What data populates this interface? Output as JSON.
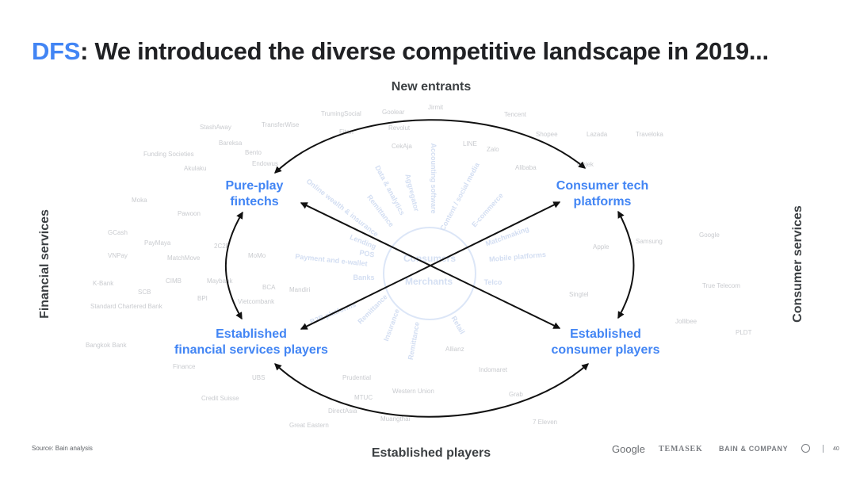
{
  "title": {
    "accent": "DFS",
    "rest": ": We introduced the diverse competitive landscape in 2019..."
  },
  "axes": {
    "top": "New entrants",
    "bottom": "Established players",
    "left": "Financial services",
    "right": "Consumer services"
  },
  "nodes": {
    "pureplay": [
      "Pure-play",
      "fintechs"
    ],
    "consumer_tech": [
      "Consumer tech",
      "platforms"
    ],
    "est_financial": [
      "Established",
      "financial services players"
    ],
    "est_consumer": [
      "Established",
      "consumer players"
    ]
  },
  "hub": [
    "Consumers",
    "Merchants"
  ],
  "spokes": [
    "Online wealth & insurance",
    "Data & analytics",
    "Remittance",
    "Aggregator",
    "Accounting software",
    "Content / social media",
    "E-commerce",
    "Matchmaking",
    "Mobile platforms",
    "Telco",
    "Retail",
    "Remittance",
    "Insurance",
    "Remittance",
    "Banks",
    "Payment and e-wallet",
    "POS",
    "Lending",
    "B2B platforms"
  ],
  "background_logos": [
    "TrumingSocial",
    "Goolear",
    "Jirmit",
    "Tencent",
    "StashAway",
    "TransferWise",
    "Fitan",
    "Revolut",
    "LINE",
    "Shopee",
    "Lazada",
    "Traveloka",
    "Bareksa",
    "Bento",
    "CekAja",
    "Zalo",
    "Funding Societies",
    "Endowus",
    "Akulaku",
    "Alibaba",
    "Gojek",
    "Moka",
    "Pawoon",
    "GCash",
    "PayMaya",
    "2C2P",
    "Apple",
    "Samsung",
    "Google",
    "VNPay",
    "MatchMove",
    "MoMo",
    "K-Bank",
    "SCB",
    "CIMB",
    "Maybank",
    "BCA",
    "Mandiri",
    "True Telecom",
    "Standard Chartered Bank",
    "BPI",
    "Vietcombank",
    "Singtel",
    "Bangkok Bank",
    "Jollibee",
    "PLDT",
    "Finance",
    "Allianz",
    "Indomaret",
    "UBS",
    "Prudential",
    "Western Union",
    "Credit Suisse",
    "MTUC",
    "DirectAsia",
    "Grab",
    "Great Eastern",
    "Muangthai",
    "7 Eleven"
  ],
  "footer": {
    "source": "Source: Bain analysis",
    "google": "Google",
    "temasek": "TEMASEK",
    "bain": "BAIN & COMPANY",
    "page": "40"
  }
}
